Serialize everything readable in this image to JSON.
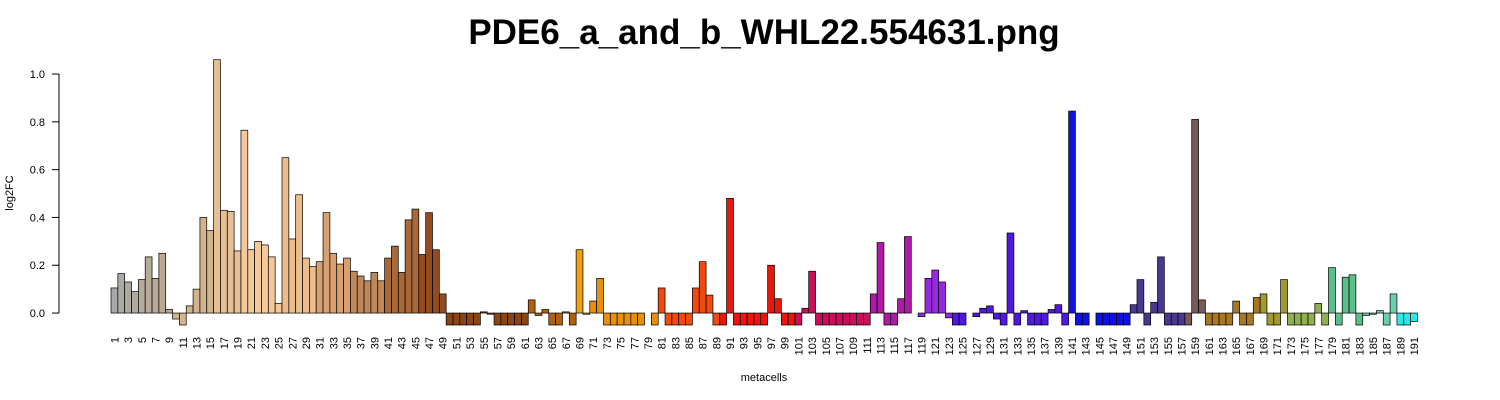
{
  "chart_data": {
    "type": "bar",
    "title": "PDE6_a_and_b_WHL22.554631.png",
    "x_label": "metacells",
    "y_label": "log2FC",
    "categories": [
      1,
      null,
      3,
      null,
      5,
      null,
      7,
      null,
      9,
      null,
      11,
      null,
      13,
      null,
      15,
      null,
      17,
      null,
      19,
      null,
      21,
      null,
      23,
      null,
      25,
      null,
      27,
      null,
      29,
      null,
      31,
      null,
      33,
      null,
      35,
      null,
      37,
      null,
      39,
      null,
      41,
      null,
      43,
      null,
      45,
      null,
      47,
      null,
      49,
      null,
      51,
      null,
      53,
      null,
      55,
      null,
      57,
      null,
      59,
      null,
      61,
      null,
      63,
      null,
      65,
      null,
      67,
      null,
      69,
      null,
      71,
      null,
      73,
      null,
      75,
      null,
      77,
      null,
      79,
      null,
      81,
      null,
      83,
      null,
      85,
      null,
      87,
      null,
      89,
      null,
      91,
      null,
      93,
      null,
      95,
      null,
      97,
      null,
      99,
      null,
      101,
      null,
      103,
      null,
      105,
      null,
      107,
      null,
      109,
      null,
      111,
      null,
      113,
      null,
      115,
      null,
      117,
      null,
      119,
      null,
      121,
      null,
      123,
      null,
      125,
      null,
      127,
      null,
      129,
      null,
      131,
      null,
      133,
      null,
      135,
      null,
      137,
      null,
      139,
      null,
      141,
      null,
      143,
      null,
      145,
      null,
      147,
      null,
      149,
      null,
      151,
      null,
      153,
      null,
      155,
      null,
      157,
      null,
      159,
      null,
      161,
      null,
      163,
      null,
      165,
      null,
      167,
      null,
      169,
      null,
      171,
      null,
      173,
      null,
      175,
      null,
      177,
      null,
      179,
      null,
      181,
      null,
      183,
      null,
      185,
      null,
      187,
      null,
      189,
      null,
      191
    ],
    "values": [
      0.105,
      0.165,
      0.13,
      0.09,
      0.14,
      0.235,
      0.145,
      0.25,
      0.015,
      -0.025,
      -0.05,
      0.03,
      0.1,
      0.4,
      0.345,
      1.06,
      0.43,
      0.425,
      0.26,
      0.765,
      0.265,
      0.3,
      0.285,
      0.235,
      0.04,
      0.65,
      0.31,
      0.495,
      0.23,
      0.195,
      0.215,
      0.42,
      0.25,
      0.205,
      0.23,
      0.175,
      0.155,
      0.135,
      0.17,
      0.135,
      0.23,
      0.28,
      0.17,
      0.39,
      0.435,
      0.245,
      0.42,
      0.265,
      0.08,
      -0.05,
      -0.05,
      -0.05,
      -0.05,
      -0.05,
      0.005,
      -0.005,
      -0.05,
      -0.05,
      -0.05,
      -0.05,
      -0.05,
      0.055,
      -0.01,
      0.015,
      -0.05,
      -0.05,
      0.005,
      -0.05,
      0.265,
      -0.005,
      0.05,
      0.145,
      -0.05,
      -0.05,
      -0.05,
      -0.05,
      -0.05,
      -0.05,
      0.0,
      -0.05,
      0.105,
      -0.05,
      -0.05,
      -0.05,
      -0.05,
      0.105,
      0.215,
      0.075,
      -0.05,
      -0.05,
      0.48,
      -0.05,
      -0.05,
      -0.05,
      -0.05,
      -0.05,
      0.2,
      0.06,
      -0.05,
      -0.05,
      -0.05,
      0.02,
      0.175,
      -0.05,
      -0.05,
      -0.05,
      -0.05,
      -0.05,
      -0.05,
      -0.05,
      -0.05,
      0.08,
      0.295,
      -0.05,
      -0.05,
      0.06,
      0.32,
      0.0,
      -0.015,
      0.145,
      0.18,
      0.13,
      -0.02,
      -0.05,
      -0.05,
      0.0,
      -0.015,
      0.02,
      0.03,
      -0.025,
      -0.05,
      0.335,
      -0.05,
      0.01,
      -0.05,
      -0.05,
      -0.05,
      0.015,
      0.035,
      -0.05,
      0.845,
      -0.05,
      -0.05,
      0.0,
      -0.05,
      -0.05,
      -0.05,
      -0.05,
      -0.05,
      0.035,
      0.14,
      -0.05,
      0.045,
      0.235,
      -0.05,
      -0.05,
      -0.05,
      -0.05,
      0.81,
      0.055,
      -0.05,
      -0.05,
      -0.05,
      -0.05,
      0.05,
      -0.05,
      -0.05,
      0.065,
      0.08,
      -0.05,
      -0.05,
      0.14,
      -0.05,
      -0.05,
      -0.05,
      -0.05,
      0.04,
      -0.05,
      0.19,
      -0.05,
      0.15,
      0.16,
      -0.05,
      -0.01,
      -0.005,
      0.01,
      -0.05,
      0.08,
      -0.05,
      -0.05,
      -0.035
    ],
    "colors": [
      "#a8a8a8",
      "#ababa6",
      "#aeaaa2",
      "#b0ab9f",
      "#b3ab9b",
      "#b5ab98",
      "#b8aa95",
      "#bbaa92",
      "#beaa8f",
      "#d2b48c",
      "#d2b48c",
      "#d2b48c",
      "#d2b48c",
      "#d2b48c",
      "#d2b48c",
      "#e6bf92",
      "#e6bf92",
      "#e6bf92",
      "#e6bf92",
      "#f5c89a",
      "#f5c89a",
      "#f5c89a",
      "#f5c89a",
      "#f5c89a",
      "#f5c89a",
      "#ecbc8c",
      "#ecbc8c",
      "#ecbc8c",
      "#ecbc8c",
      "#ecbc8c",
      "#d8a070",
      "#d8a070",
      "#d8a070",
      "#d8a070",
      "#d8a070",
      "#c0885a",
      "#c0885a",
      "#c0885a",
      "#c0885a",
      "#c0885a",
      "#a8683a",
      "#a8683a",
      "#a8683a",
      "#a8683a",
      "#a8683a",
      "#944c1e",
      "#944c1e",
      "#944c1e",
      "#944c1e",
      "#8b4513",
      "#8b4513",
      "#8b4513",
      "#8b4513",
      "#8b4513",
      "#8b4513",
      "#8b4513",
      "#8b4513",
      "#8b4513",
      "#8b4513",
      "#8b4513",
      "#8b4513",
      "#b0600e",
      "#b0600e",
      "#b0600e",
      "#b0600e",
      "#b0600e",
      "#b0600e",
      "#b0600e",
      "#f0a010",
      "#e8900c",
      "#e8900c",
      "#e8900c",
      "#e8900c",
      "#e8900c",
      "#e8900c",
      "#e8900c",
      "#e8900c",
      "#e8900c",
      "#e8900c",
      "#e8900c",
      "#f04a10",
      "#f04a10",
      "#f04a10",
      "#f04a10",
      "#f04a10",
      "#f04a10",
      "#f04a10",
      "#f04a10",
      "#f04a10",
      "#e8180c",
      "#e8180c",
      "#e8180c",
      "#e8180c",
      "#e8180c",
      "#e8180c",
      "#e8180c",
      "#e8180c",
      "#e8180c",
      "#e8180c",
      "#e8180c",
      "#c8105a",
      "#c8105a",
      "#c8105a",
      "#c8105a",
      "#c8105a",
      "#c8105a",
      "#c8105a",
      "#c8105a",
      "#c8105a",
      "#c8105a",
      "#c8105a",
      "#b018a8",
      "#b018a8",
      "#b018a8",
      "#b018a8",
      "#b018a8",
      "#b018a8",
      "#b018a8",
      "#9828e0",
      "#9828e0",
      "#9828e0",
      "#9828e0",
      "#9828e0",
      "#5018e0",
      "#5018e0",
      "#5018e0",
      "#5018e0",
      "#5018e0",
      "#5018e0",
      "#5018e0",
      "#5018e0",
      "#5018e0",
      "#5018e0",
      "#5018e0",
      "#5018e0",
      "#5018e0",
      "#5018e0",
      "#5018e0",
      "#5018e0",
      "#5018e0",
      "#1010e0",
      "#1010e0",
      "#1010e0",
      "#1010e0",
      "#1010e0",
      "#1010e0",
      "#1010e0",
      "#1010e0",
      "#1010e0",
      "#4a3890",
      "#4a3890",
      "#4a3890",
      "#4a3890",
      "#4a3890",
      "#4a3890",
      "#4a3890",
      "#4a3890",
      "#7a5a58",
      "#7a5a58",
      "#7a5a58",
      "#a87820",
      "#a87820",
      "#a87820",
      "#a87820",
      "#a87820",
      "#a87820",
      "#a87820",
      "#a87820",
      "#a09a30",
      "#a09a30",
      "#a09a30",
      "#a09a30",
      "#90b050",
      "#90b050",
      "#90b050",
      "#90b050",
      "#90b050",
      "#90b050",
      "#58c088",
      "#58c088",
      "#58c088",
      "#58c088",
      "#58c088",
      "#68d0b0",
      "#68d0b0",
      "#68d0b0",
      "#68d0b0",
      "#68d0b0",
      "#28e8e8",
      "#28e8e8",
      "#28e8e8"
    ],
    "ylim": [
      -0.05,
      1.06
    ],
    "yticks": [
      {
        "value": 0,
        "label": "0.0"
      },
      0.2,
      0.4,
      0.6,
      0.8,
      {
        "value": 1,
        "label": "1.0"
      }
    ],
    "grid": false
  }
}
